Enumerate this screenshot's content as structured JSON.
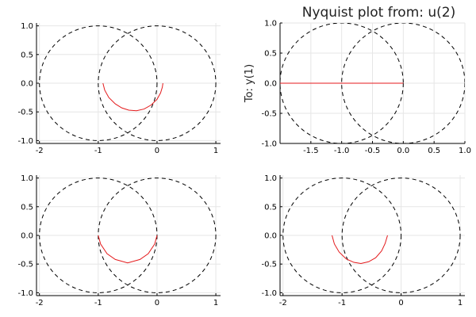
{
  "chart_data": [
    {
      "type": "line",
      "title": "",
      "ylabel": "",
      "xlim": [
        -2.05,
        1.08
      ],
      "ylim": [
        -1.05,
        1.05
      ],
      "xticks": [
        -2,
        -1,
        0,
        1
      ],
      "xtick_labels": [
        "-2",
        "-1",
        "0",
        "1"
      ],
      "yticks": [
        1.0,
        0.5,
        0.0,
        -0.5,
        -1.0
      ],
      "ytick_labels": [
        "1.0",
        "0.5",
        "0.0",
        "-0.5",
        "-1.0"
      ],
      "grid": true,
      "reference_circles": [
        {
          "cx": -1,
          "cy": 0,
          "r": 1
        },
        {
          "cx": 0,
          "cy": 0,
          "r": 1
        }
      ],
      "series": [
        {
          "x": [
            -0.92,
            -0.89,
            -0.82,
            -0.71,
            -0.6,
            -0.48,
            -0.35,
            -0.22,
            -0.1,
            0.0,
            0.06,
            0.09,
            0.1
          ],
          "y": [
            0.0,
            -0.12,
            -0.25,
            -0.36,
            -0.43,
            -0.47,
            -0.48,
            -0.45,
            -0.38,
            -0.28,
            -0.17,
            -0.07,
            0.0
          ]
        }
      ]
    },
    {
      "type": "line",
      "title": "Nyquist plot from: u(2)",
      "ylabel": "To: y(1)",
      "xlim": [
        -2.0,
        1.0
      ],
      "ylim": [
        -1.0,
        1.0
      ],
      "xticks": [
        -1.5,
        -1.0,
        -0.5,
        0.0,
        0.5,
        1.0
      ],
      "xtick_labels": [
        "-1.5",
        "-1.0",
        "-0.5",
        "0.0",
        "0.5",
        "1.0"
      ],
      "yticks": [
        1.0,
        0.5,
        0.0,
        -0.5,
        -1.0
      ],
      "ytick_labels": [
        "1.0",
        "0.5",
        "0.0",
        "-0.5",
        "-1.0"
      ],
      "grid": true,
      "reference_circles": [
        {
          "cx": -1,
          "cy": 0,
          "r": 1
        },
        {
          "cx": 0,
          "cy": 0,
          "r": 1
        }
      ],
      "series": [
        {
          "x": [
            -2.0,
            0.0
          ],
          "y": [
            0.0,
            0.0
          ]
        }
      ]
    },
    {
      "type": "line",
      "title": "",
      "ylabel": "",
      "xlim": [
        -2.05,
        1.08
      ],
      "ylim": [
        -1.05,
        1.05
      ],
      "xticks": [
        -2,
        -1,
        0,
        1
      ],
      "xtick_labels": [
        "-2",
        "-1",
        "0",
        "1"
      ],
      "yticks": [
        1.0,
        0.5,
        0.0,
        -0.5,
        -1.0
      ],
      "ytick_labels": [
        "1.0",
        "0.5",
        "0.0",
        "-0.5",
        "-1.0"
      ],
      "grid": true,
      "reference_circles": [
        {
          "cx": -1,
          "cy": 0,
          "r": 1
        },
        {
          "cx": 0,
          "cy": 0,
          "r": 1
        }
      ],
      "series": [
        {
          "x": [
            -1.0,
            -0.96,
            -0.85,
            -0.71,
            -0.5,
            -0.29,
            -0.15,
            -0.04,
            0.0
          ],
          "y": [
            0.0,
            -0.15,
            -0.32,
            -0.42,
            -0.48,
            -0.42,
            -0.32,
            -0.15,
            0.0
          ]
        }
      ]
    },
    {
      "type": "line",
      "title": "",
      "ylabel": "",
      "xlim": [
        -2.05,
        1.08
      ],
      "ylim": [
        -1.05,
        1.05
      ],
      "xticks": [
        -2,
        -1,
        0,
        1
      ],
      "xtick_labels": [
        "-2",
        "-1",
        "0",
        "1"
      ],
      "yticks": [
        1.0,
        0.5,
        0.0,
        -0.5,
        -1.0
      ],
      "ytick_labels": [
        "1.0",
        "0.5",
        "0.0",
        "-0.5",
        "-1.0"
      ],
      "grid": true,
      "reference_circles": [
        {
          "cx": -1,
          "cy": 0,
          "r": 1
        },
        {
          "cx": 0,
          "cy": 0,
          "r": 1
        }
      ],
      "series": [
        {
          "x": [
            -1.17,
            -1.13,
            -1.05,
            -0.93,
            -0.8,
            -0.68,
            -0.55,
            -0.43,
            -0.33,
            -0.27,
            -0.23
          ],
          "y": [
            0.0,
            -0.15,
            -0.29,
            -0.41,
            -0.47,
            -0.49,
            -0.46,
            -0.39,
            -0.27,
            -0.14,
            0.0
          ]
        }
      ]
    }
  ]
}
